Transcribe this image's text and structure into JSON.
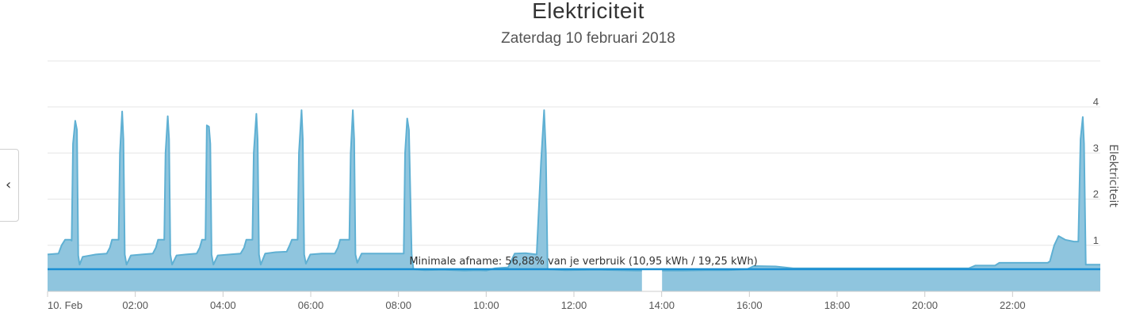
{
  "header": {
    "title": "Elektriciteit",
    "subtitle": "Zaterdag 10 februari 2018"
  },
  "nav": {
    "prev_icon": "chevron-left-icon",
    "prev_glyph": "‹"
  },
  "colors": {
    "series": "#8fc5de",
    "line": "#5fb0d3",
    "plotline": "#1a8fd3",
    "grid": "#e6e6e6"
  },
  "chart_data": {
    "type": "area",
    "title": "Elektriciteit",
    "subtitle": "Zaterdag 10 februari 2018",
    "xlabel": "",
    "ylabel": "Elektriciteit",
    "xlim": [
      0,
      24
    ],
    "ylim": [
      0,
      4
    ],
    "grid": true,
    "x_tick_labels": [
      "10. Feb",
      "02:00",
      "04:00",
      "06:00",
      "08:00",
      "10:00",
      "12:00",
      "14:00",
      "16:00",
      "18:00",
      "20:00",
      "22:00"
    ],
    "x_ticks": [
      0,
      2,
      4,
      6,
      8,
      10,
      12,
      14,
      16,
      18,
      20,
      22
    ],
    "y_ticks": [
      0,
      1,
      2,
      3,
      4
    ],
    "plot_line": {
      "value": 0.48,
      "label": "Minimale afname: 56,88% van je verbruik (10,95 kWh / 19,25 kWh)"
    },
    "series": [
      {
        "points": [
          [
            0.0,
            0.8
          ],
          [
            0.25,
            0.82
          ],
          [
            0.32,
            1.0
          ],
          [
            0.4,
            1.12
          ],
          [
            0.52,
            1.12
          ],
          [
            0.55,
            1.1
          ],
          [
            0.58,
            3.2
          ],
          [
            0.63,
            3.7
          ],
          [
            0.67,
            3.5
          ],
          [
            0.7,
            0.78
          ],
          [
            0.73,
            0.58
          ],
          [
            0.8,
            0.75
          ],
          [
            1.1,
            0.8
          ],
          [
            1.35,
            0.82
          ],
          [
            1.42,
            0.95
          ],
          [
            1.47,
            1.12
          ],
          [
            1.62,
            1.12
          ],
          [
            1.65,
            3.0
          ],
          [
            1.7,
            3.9
          ],
          [
            1.73,
            3.3
          ],
          [
            1.76,
            0.8
          ],
          [
            1.8,
            0.58
          ],
          [
            1.9,
            0.78
          ],
          [
            2.15,
            0.8
          ],
          [
            2.4,
            0.82
          ],
          [
            2.47,
            0.95
          ],
          [
            2.52,
            1.12
          ],
          [
            2.66,
            1.12
          ],
          [
            2.69,
            3.0
          ],
          [
            2.74,
            3.8
          ],
          [
            2.77,
            3.3
          ],
          [
            2.8,
            0.8
          ],
          [
            2.84,
            0.58
          ],
          [
            2.94,
            0.78
          ],
          [
            3.15,
            0.8
          ],
          [
            3.4,
            0.82
          ],
          [
            3.47,
            0.95
          ],
          [
            3.52,
            1.12
          ],
          [
            3.6,
            1.12
          ],
          [
            3.63,
            3.6
          ],
          [
            3.68,
            3.57
          ],
          [
            3.71,
            3.2
          ],
          [
            3.74,
            0.8
          ],
          [
            3.78,
            0.58
          ],
          [
            3.88,
            0.78
          ],
          [
            4.15,
            0.8
          ],
          [
            4.4,
            0.82
          ],
          [
            4.48,
            0.95
          ],
          [
            4.53,
            1.12
          ],
          [
            4.67,
            1.12
          ],
          [
            4.7,
            3.0
          ],
          [
            4.76,
            3.85
          ],
          [
            4.79,
            3.3
          ],
          [
            4.82,
            0.8
          ],
          [
            4.86,
            0.58
          ],
          [
            4.96,
            0.82
          ],
          [
            5.2,
            0.85
          ],
          [
            5.45,
            0.86
          ],
          [
            5.52,
            1.0
          ],
          [
            5.57,
            1.12
          ],
          [
            5.7,
            1.12
          ],
          [
            5.73,
            3.0
          ],
          [
            5.79,
            3.93
          ],
          [
            5.82,
            3.3
          ],
          [
            5.85,
            0.8
          ],
          [
            5.89,
            0.6
          ],
          [
            5.99,
            0.8
          ],
          [
            6.25,
            0.82
          ],
          [
            6.55,
            0.82
          ],
          [
            6.62,
            0.95
          ],
          [
            6.67,
            1.12
          ],
          [
            6.88,
            1.12
          ],
          [
            6.91,
            3.0
          ],
          [
            6.96,
            3.93
          ],
          [
            6.99,
            3.3
          ],
          [
            7.02,
            0.8
          ],
          [
            7.06,
            0.62
          ],
          [
            7.16,
            0.82
          ],
          [
            7.5,
            0.82
          ],
          [
            8.05,
            0.82
          ],
          [
            8.12,
            0.82
          ],
          [
            8.15,
            3.0
          ],
          [
            8.2,
            3.75
          ],
          [
            8.24,
            3.5
          ],
          [
            8.3,
            0.8
          ],
          [
            8.34,
            0.48
          ],
          [
            8.6,
            0.46
          ],
          [
            9.0,
            0.47
          ],
          [
            9.5,
            0.45
          ],
          [
            9.8,
            0.46
          ],
          [
            10.0,
            0.45
          ],
          [
            10.2,
            0.5
          ],
          [
            10.5,
            0.52
          ],
          [
            10.65,
            0.82
          ],
          [
            10.9,
            0.83
          ],
          [
            11.15,
            0.8
          ],
          [
            11.25,
            2.8
          ],
          [
            11.32,
            3.93
          ],
          [
            11.36,
            3.0
          ],
          [
            11.4,
            0.48
          ],
          [
            11.8,
            0.46
          ],
          [
            12.5,
            0.47
          ],
          [
            13.0,
            0.46
          ],
          [
            13.4,
            0.45
          ],
          [
            13.55,
            0.45
          ],
          [
            13.56,
            null
          ],
          [
            14.0,
            null
          ],
          [
            14.01,
            0.45
          ],
          [
            14.5,
            0.45
          ],
          [
            15.0,
            0.46
          ],
          [
            15.5,
            0.46
          ],
          [
            15.95,
            0.48
          ],
          [
            16.1,
            0.55
          ],
          [
            16.6,
            0.54
          ],
          [
            17.0,
            0.5
          ],
          [
            17.5,
            0.5
          ],
          [
            18.0,
            0.5
          ],
          [
            18.5,
            0.5
          ],
          [
            19.0,
            0.5
          ],
          [
            19.5,
            0.5
          ],
          [
            20.0,
            0.5
          ],
          [
            20.5,
            0.5
          ],
          [
            21.0,
            0.5
          ],
          [
            21.15,
            0.56
          ],
          [
            21.6,
            0.56
          ],
          [
            21.7,
            0.62
          ],
          [
            22.2,
            0.62
          ],
          [
            22.8,
            0.62
          ],
          [
            22.85,
            0.65
          ],
          [
            22.95,
            1.0
          ],
          [
            23.05,
            1.2
          ],
          [
            23.2,
            1.12
          ],
          [
            23.4,
            1.08
          ],
          [
            23.5,
            1.08
          ],
          [
            23.55,
            3.3
          ],
          [
            23.6,
            3.78
          ],
          [
            23.63,
            3.2
          ],
          [
            23.67,
            0.58
          ],
          [
            24.0,
            0.58
          ]
        ]
      }
    ]
  }
}
